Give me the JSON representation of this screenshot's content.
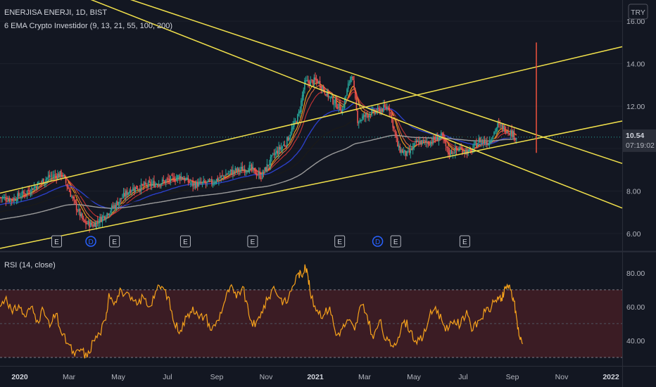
{
  "chart_data": [
    {
      "type": "candlestick",
      "title": "ENERJISA ENERJI, 1D, BIST",
      "indicator": "6 EMA Crypto Investidor (9, 13, 21, 55, 100, 200)",
      "currency": "TRY",
      "ylim": [
        5.2,
        17.0
      ],
      "yticks": [
        "16.00",
        "14.00",
        "12.00",
        "10.00",
        "8.00",
        "6.00"
      ],
      "last_price": "10.54",
      "countdown": "07:19:02",
      "x_labels": [
        "2020",
        "Mar",
        "May",
        "Jul",
        "Sep",
        "Nov",
        "2021",
        "Mar",
        "May",
        "Jul",
        "Sep",
        "Nov",
        "2022"
      ],
      "price_path": [
        [
          0.0,
          7.7
        ],
        [
          0.02,
          7.6
        ],
        [
          0.05,
          8.1
        ],
        [
          0.08,
          8.7
        ],
        [
          0.1,
          8.8
        ],
        [
          0.12,
          7.4
        ],
        [
          0.135,
          6.5
        ],
        [
          0.15,
          6.4
        ],
        [
          0.17,
          6.9
        ],
        [
          0.19,
          7.5
        ],
        [
          0.21,
          8.1
        ],
        [
          0.24,
          8.3
        ],
        [
          0.27,
          8.5
        ],
        [
          0.29,
          8.7
        ],
        [
          0.31,
          8.3
        ],
        [
          0.34,
          8.4
        ],
        [
          0.37,
          8.9
        ],
        [
          0.4,
          9.1
        ],
        [
          0.42,
          8.7
        ],
        [
          0.44,
          9.7
        ],
        [
          0.46,
          10.3
        ],
        [
          0.48,
          11.6
        ],
        [
          0.49,
          13.1
        ],
        [
          0.51,
          13.2
        ],
        [
          0.53,
          12.4
        ],
        [
          0.55,
          11.8
        ],
        [
          0.565,
          13.6
        ],
        [
          0.575,
          11.3
        ],
        [
          0.59,
          11.6
        ],
        [
          0.61,
          11.8
        ],
        [
          0.625,
          12.0
        ],
        [
          0.64,
          10.0
        ],
        [
          0.655,
          9.7
        ],
        [
          0.67,
          10.3
        ],
        [
          0.69,
          10.3
        ],
        [
          0.71,
          10.6
        ],
        [
          0.72,
          9.8
        ],
        [
          0.74,
          10.0
        ],
        [
          0.755,
          9.8
        ],
        [
          0.77,
          10.4
        ],
        [
          0.785,
          10.3
        ],
        [
          0.8,
          11.1
        ],
        [
          0.815,
          10.9
        ],
        [
          0.83,
          10.54
        ]
      ],
      "trendlines": [
        {
          "from": [
            -0.2,
            21.0
          ],
          "to": [
            1.0,
            7.2
          ],
          "color": "#f2e14b"
        },
        {
          "from": [
            0.13,
            17.8
          ],
          "to": [
            1.0,
            9.3
          ],
          "color": "#f2e14b"
        },
        {
          "from": [
            0.0,
            7.9
          ],
          "to": [
            1.0,
            14.8
          ],
          "color": "#f2e14b"
        },
        {
          "from": [
            0.0,
            5.3
          ],
          "to": [
            1.0,
            11.3
          ],
          "color": "#f2e14b"
        }
      ],
      "marker_line": {
        "x": 0.862,
        "from": 15.0,
        "to": 9.8,
        "color": "#f1533e"
      },
      "events": [
        {
          "x": 0.091,
          "label": "E"
        },
        {
          "x": 0.146,
          "label": "D"
        },
        {
          "x": 0.184,
          "label": "E"
        },
        {
          "x": 0.298,
          "label": "E"
        },
        {
          "x": 0.406,
          "label": "E"
        },
        {
          "x": 0.546,
          "label": "E"
        },
        {
          "x": 0.607,
          "label": "D"
        },
        {
          "x": 0.636,
          "label": "E"
        },
        {
          "x": 0.747,
          "label": "E"
        }
      ],
      "ema_colors": [
        "#f7a21b",
        "#e06640",
        "#c93434",
        "#2b3fc7",
        "#1a1a1a",
        "#9b9b9b"
      ]
    },
    {
      "type": "line",
      "title": "RSI (14, close)",
      "ylim": [
        25,
        92
      ],
      "yticks": [
        "80.00",
        "60.00",
        "40.00"
      ],
      "band": [
        30,
        70
      ],
      "midline": 50,
      "color": "#f7a21b",
      "band_color": "#4a1f25",
      "values": [
        [
          0.0,
          60
        ],
        [
          0.01,
          66
        ],
        [
          0.02,
          56
        ],
        [
          0.03,
          61
        ],
        [
          0.04,
          54
        ],
        [
          0.05,
          60
        ],
        [
          0.06,
          52
        ],
        [
          0.07,
          58
        ],
        [
          0.08,
          48
        ],
        [
          0.09,
          56
        ],
        [
          0.1,
          43
        ],
        [
          0.11,
          38
        ],
        [
          0.12,
          31
        ],
        [
          0.13,
          35
        ],
        [
          0.14,
          30
        ],
        [
          0.15,
          40
        ],
        [
          0.16,
          44
        ],
        [
          0.17,
          52
        ],
        [
          0.175,
          68
        ],
        [
          0.185,
          63
        ],
        [
          0.195,
          70
        ],
        [
          0.21,
          64
        ],
        [
          0.22,
          61
        ],
        [
          0.23,
          66
        ],
        [
          0.24,
          60
        ],
        [
          0.25,
          69
        ],
        [
          0.26,
          72
        ],
        [
          0.27,
          66
        ],
        [
          0.28,
          50
        ],
        [
          0.29,
          46
        ],
        [
          0.3,
          54
        ],
        [
          0.31,
          60
        ],
        [
          0.32,
          53
        ],
        [
          0.33,
          55
        ],
        [
          0.34,
          46
        ],
        [
          0.35,
          52
        ],
        [
          0.36,
          62
        ],
        [
          0.37,
          72
        ],
        [
          0.38,
          65
        ],
        [
          0.39,
          72
        ],
        [
          0.4,
          55
        ],
        [
          0.41,
          48
        ],
        [
          0.42,
          57
        ],
        [
          0.43,
          64
        ],
        [
          0.44,
          72
        ],
        [
          0.45,
          65
        ],
        [
          0.46,
          62
        ],
        [
          0.47,
          72
        ],
        [
          0.48,
          80
        ],
        [
          0.485,
          78
        ],
        [
          0.49,
          85
        ],
        [
          0.495,
          78
        ],
        [
          0.5,
          65
        ],
        [
          0.51,
          58
        ],
        [
          0.52,
          55
        ],
        [
          0.53,
          60
        ],
        [
          0.54,
          43
        ],
        [
          0.55,
          47
        ],
        [
          0.56,
          52
        ],
        [
          0.57,
          46
        ],
        [
          0.58,
          61
        ],
        [
          0.59,
          55
        ],
        [
          0.6,
          41
        ],
        [
          0.61,
          52
        ],
        [
          0.62,
          40
        ],
        [
          0.63,
          37
        ],
        [
          0.64,
          42
        ],
        [
          0.65,
          52
        ],
        [
          0.66,
          46
        ],
        [
          0.67,
          38
        ],
        [
          0.68,
          42
        ],
        [
          0.69,
          54
        ],
        [
          0.7,
          60
        ],
        [
          0.71,
          52
        ],
        [
          0.72,
          46
        ],
        [
          0.73,
          52
        ],
        [
          0.74,
          49
        ],
        [
          0.75,
          58
        ],
        [
          0.76,
          46
        ],
        [
          0.77,
          52
        ],
        [
          0.78,
          57
        ],
        [
          0.79,
          60
        ],
        [
          0.8,
          66
        ],
        [
          0.805,
          63
        ],
        [
          0.81,
          68
        ],
        [
          0.815,
          73
        ],
        [
          0.82,
          70
        ],
        [
          0.825,
          65
        ],
        [
          0.83,
          54
        ],
        [
          0.835,
          42
        ],
        [
          0.84,
          38
        ]
      ]
    }
  ]
}
